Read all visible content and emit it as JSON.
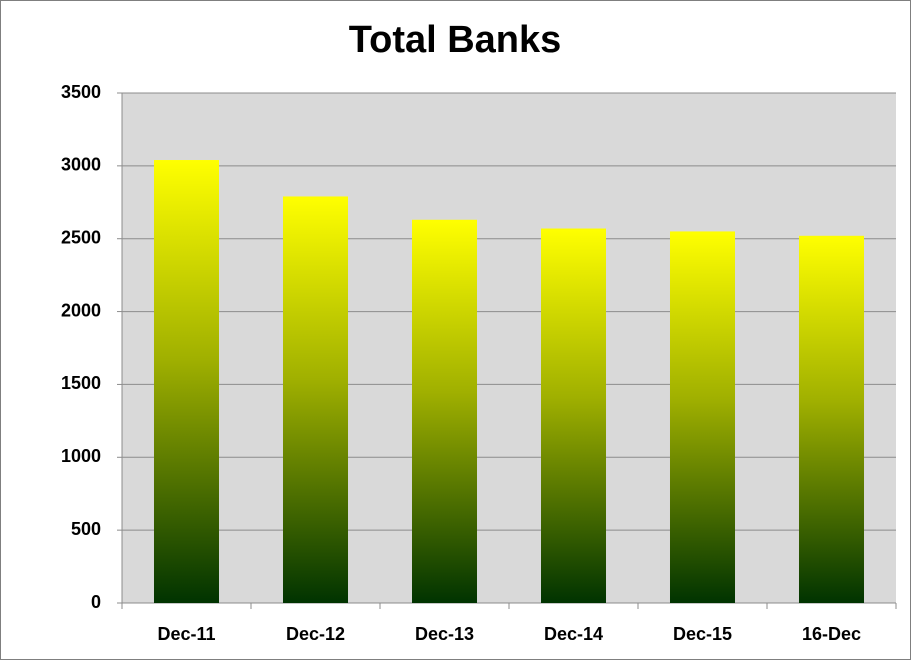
{
  "chart_data": {
    "type": "bar",
    "title": "Total Banks",
    "categories": [
      "Dec-11",
      "Dec-12",
      "Dec-13",
      "Dec-14",
      "Dec-15",
      "16-Dec"
    ],
    "values": [
      3040,
      2790,
      2630,
      2570,
      2550,
      2520
    ],
    "color": "#ffff00",
    "ylim": [
      0,
      3500
    ],
    "yticks": [
      0,
      500,
      1000,
      1500,
      2000,
      2500,
      3000,
      3500
    ],
    "grid": true
  }
}
